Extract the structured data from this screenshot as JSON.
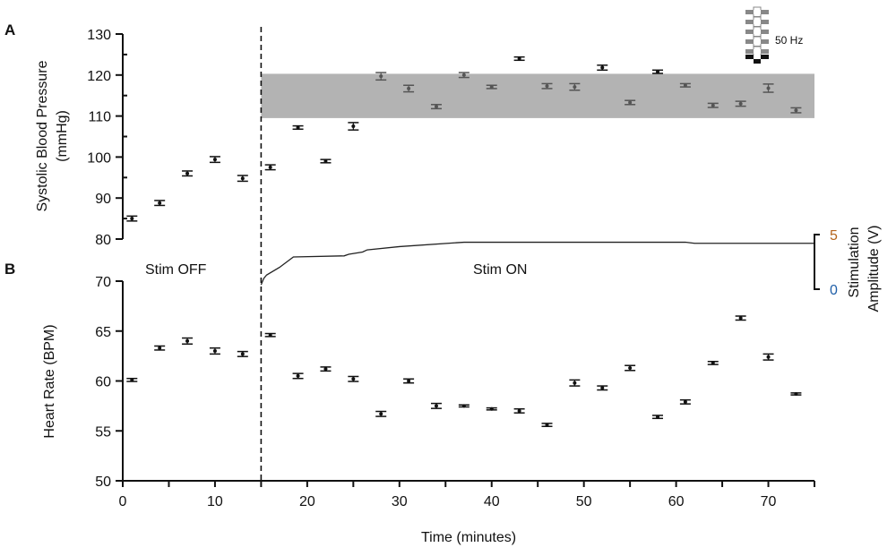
{
  "chart_data": [
    {
      "panel_label": "A",
      "type": "scatter",
      "ylabel": "Systolic Blood Pressure",
      "ylabel_unit": "(mmHg)",
      "ylim": [
        80,
        130
      ],
      "yticks": [
        80,
        90,
        100,
        110,
        120,
        130
      ],
      "x": [
        1,
        4,
        7,
        10,
        13,
        16,
        19,
        22,
        25,
        28,
        31,
        34,
        37,
        40,
        43,
        46,
        49,
        52,
        55,
        58,
        61,
        64,
        67,
        70,
        73
      ],
      "values": [
        85,
        88.8,
        96,
        99.4,
        94.8,
        97.5,
        107.2,
        99,
        107.5,
        119.7,
        116.7,
        112.3,
        120,
        117.1,
        124,
        117.3,
        117.1,
        121.8,
        113.3,
        120.8,
        117.5,
        112.6,
        113,
        116.8,
        111.4
      ],
      "error": [
        0.6,
        0.6,
        0.6,
        0.7,
        0.7,
        0.6,
        0.4,
        0.4,
        0.9,
        0.9,
        0.8,
        0.5,
        0.6,
        0.4,
        0.4,
        0.6,
        0.8,
        0.6,
        0.5,
        0.4,
        0.4,
        0.5,
        0.6,
        1.0,
        0.6
      ],
      "shaded_band": {
        "y_range": [
          109.5,
          120.3
        ],
        "x_range": [
          15,
          75
        ],
        "color": "#b3b3b3"
      },
      "in_band_point_color": "#555555",
      "annotation": {
        "icon": "electrode-array-icon",
        "text": "50 Hz"
      }
    },
    {
      "panel_label": "B",
      "type": "scatter",
      "ylabel": "Heart Rate (BPM)",
      "ylim": [
        50,
        70
      ],
      "yticks": [
        50,
        55,
        60,
        65,
        70
      ],
      "x": [
        1,
        4,
        7,
        10,
        13,
        16,
        19,
        22,
        25,
        28,
        31,
        34,
        37,
        40,
        43,
        46,
        49,
        52,
        55,
        58,
        61,
        64,
        67,
        70,
        73
      ],
      "values": [
        60.1,
        63.3,
        64,
        63,
        62.7,
        64.6,
        60.5,
        61.2,
        60.2,
        56.7,
        60,
        57.5,
        57.5,
        57.2,
        57,
        55.6,
        59.8,
        59.3,
        61.3,
        56.4,
        57.9,
        61.8,
        66.3,
        62.4,
        58.7
      ],
      "error": [
        0.15,
        0.2,
        0.3,
        0.3,
        0.25,
        0.15,
        0.25,
        0.2,
        0.25,
        0.25,
        0.2,
        0.25,
        0.1,
        0.1,
        0.2,
        0.15,
        0.3,
        0.2,
        0.25,
        0.15,
        0.2,
        0.15,
        0.2,
        0.3,
        0.1
      ],
      "xlabel": "Time (minutes)",
      "xlim": [
        0,
        75
      ],
      "xticks": [
        0,
        10,
        20,
        30,
        40,
        50,
        60,
        70
      ]
    },
    {
      "type": "line",
      "ylabel": "Stimulation Amplitude (V)",
      "ylabel_line1": "Stimulation",
      "ylabel_line2": "Amplitude (V)",
      "ylim": [
        0,
        5
      ],
      "yticks": [
        "0",
        "5"
      ],
      "ytick_colors": {
        "0": "#1f5fa8",
        "5": "#b5651d"
      },
      "x": [
        15,
        15.3,
        15.6,
        17,
        18.5,
        24,
        24.5,
        26,
        26.5,
        30,
        37,
        61,
        62,
        75
      ],
      "values": [
        0.4,
        1.0,
        1.3,
        2.0,
        2.95,
        3.05,
        3.2,
        3.4,
        3.6,
        3.9,
        4.3,
        4.3,
        4.2,
        4.2
      ]
    }
  ],
  "stim_onset_minute": 15,
  "labels": {
    "stim_off": "Stim OFF",
    "stim_on": "Stim ON"
  }
}
